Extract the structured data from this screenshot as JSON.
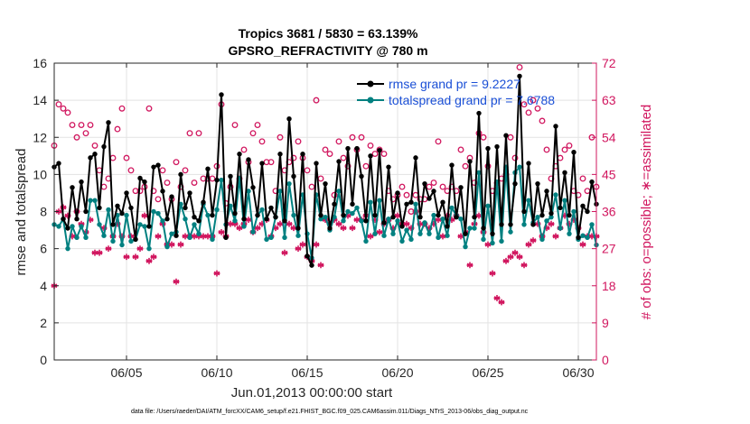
{
  "chart_data": {
    "type": "line",
    "title": "Tropics 3681 / 5830 = 63.139%",
    "subtitle": "GPSRO_REFRACTIVITY @ 780 m",
    "xlabel": "Jun.01,2013 00:00:00 start",
    "ylabel": "rmse and totalspread",
    "ylabel_right": "# of obs: o=possible; ∗=assimilated",
    "footer": "data file: /Users/raeder/DAI/ATM_forcXX/CAM6_setup/f.e21.FHIST_BGC.f09_025.CAM6assim.011/Diags_NTrS_2013-06/obs_diag_output.nc",
    "xlim": [
      1.0,
      31.0
    ],
    "ylim": [
      0,
      16
    ],
    "ylim_right": [
      0,
      72
    ],
    "x_ticks": [
      5,
      10,
      15,
      20,
      25,
      30
    ],
    "x_tick_labels": [
      "06/05",
      "06/10",
      "06/15",
      "06/20",
      "06/25",
      "06/30"
    ],
    "y_ticks": [
      0,
      2,
      4,
      6,
      8,
      10,
      12,
      14,
      16
    ],
    "y_ticks_right": [
      0,
      9,
      18,
      27,
      36,
      45,
      54,
      63,
      72
    ],
    "grid": true,
    "legend_position": "top-right",
    "x": [
      1.0,
      1.25,
      1.5,
      1.75,
      2.0,
      2.25,
      2.5,
      2.75,
      3.0,
      3.25,
      3.5,
      3.75,
      4.0,
      4.25,
      4.5,
      4.75,
      5.0,
      5.25,
      5.5,
      5.75,
      6.0,
      6.25,
      6.5,
      6.75,
      7.0,
      7.25,
      7.5,
      7.75,
      8.0,
      8.25,
      8.5,
      8.75,
      9.0,
      9.25,
      9.5,
      9.75,
      10.0,
      10.25,
      10.5,
      10.75,
      11.0,
      11.25,
      11.5,
      11.75,
      12.0,
      12.25,
      12.5,
      12.75,
      13.0,
      13.25,
      13.5,
      13.75,
      14.0,
      14.25,
      14.5,
      14.75,
      15.0,
      15.25,
      15.5,
      15.75,
      16.0,
      16.25,
      16.5,
      16.75,
      17.0,
      17.25,
      17.5,
      17.75,
      18.0,
      18.25,
      18.5,
      18.75,
      19.0,
      19.25,
      19.5,
      19.75,
      20.0,
      20.25,
      20.5,
      20.75,
      21.0,
      21.25,
      21.5,
      21.75,
      22.0,
      22.25,
      22.5,
      22.75,
      23.0,
      23.25,
      23.5,
      23.75,
      24.0,
      24.25,
      24.5,
      24.75,
      25.0,
      25.25,
      25.5,
      25.75,
      26.0,
      26.25,
      26.5,
      26.75,
      27.0,
      27.25,
      27.5,
      27.75,
      28.0,
      28.25,
      28.5,
      28.75,
      29.0,
      29.25,
      29.5,
      29.75,
      30.0,
      30.25,
      30.5,
      30.75,
      31.0
    ],
    "series": [
      {
        "name": "rmse grand pr = 9.2227",
        "color": "#000000",
        "marker": "filled-circle",
        "values": [
          10.4,
          10.6,
          7.6,
          7.1,
          9.3,
          7.6,
          9.6,
          8.0,
          10.9,
          11.1,
          8.2,
          11.5,
          12.8,
          7.3,
          8.3,
          7.9,
          9.0,
          8.2,
          6.5,
          9.8,
          9.6,
          7.2,
          10.4,
          10.5,
          9.1,
          7.6,
          8.8,
          6.7,
          10.0,
          8.2,
          9.0,
          7.7,
          7.5,
          8.5,
          10.3,
          7.8,
          9.7,
          14.3,
          6.6,
          9.9,
          7.9,
          11.1,
          7.6,
          10.8,
          9.3,
          7.8,
          10.6,
          7.6,
          8.2,
          7.7,
          11.1,
          7.5,
          13.0,
          9.9,
          7.1,
          11.1,
          5.6,
          5.1,
          10.6,
          7.8,
          9.5,
          7.1,
          8.4,
          10.7,
          7.8,
          11.4,
          8.4,
          11.4,
          9.9,
          7.5,
          11.0,
          7.8,
          11.3,
          7.4,
          10.4,
          7.7,
          9.0,
          7.2,
          8.4,
          8.5,
          10.9,
          7.7,
          9.5,
          8.7,
          9.1,
          7.8,
          8.5,
          7.2,
          10.5,
          7.7,
          9.3,
          6.8,
          10.7,
          7.7,
          13.3,
          7.1,
          11.4,
          6.8,
          11.5,
          7.3,
          12.1,
          7.3,
          9.5,
          15.3,
          8.0,
          10.6,
          7.3,
          9.5,
          7.8,
          9.1,
          7.9,
          12.6,
          8.2,
          10.1,
          7.8,
          11.2,
          6.6,
          8.3,
          8.0,
          9.6,
          8.4
        ]
      },
      {
        "name": "totalspread grand pr = 7.6788",
        "color": "#008080",
        "marker": "filled-circle",
        "values": [
          7.3,
          7.2,
          7.6,
          6.0,
          7.2,
          6.6,
          7.2,
          6.6,
          8.6,
          8.6,
          7.3,
          6.7,
          8.1,
          6.4,
          7.8,
          6.2,
          7.8,
          6.4,
          6.5,
          7.3,
          7.2,
          6.0,
          8.0,
          7.9,
          7.5,
          6.1,
          6.8,
          6.9,
          8.4,
          7.6,
          6.6,
          7.3,
          6.8,
          8.4,
          7.8,
          6.5,
          8.1,
          9.7,
          7.3,
          8.3,
          7.5,
          9.8,
          7.2,
          9.1,
          6.9,
          7.8,
          8.1,
          6.5,
          6.6,
          7.7,
          9.1,
          6.6,
          9.5,
          7.8,
          6.7,
          8.9,
          6.8,
          5.5,
          8.9,
          7.6,
          7.7,
          7.0,
          7.7,
          9.1,
          7.5,
          8.0,
          7.9,
          8.2,
          7.5,
          6.4,
          8.5,
          6.8,
          8.6,
          6.7,
          7.6,
          6.8,
          7.5,
          6.4,
          7.0,
          6.5,
          8.4,
          6.8,
          7.4,
          6.8,
          7.8,
          6.6,
          7.6,
          6.7,
          8.2,
          7.8,
          7.6,
          6.1,
          7.1,
          7.1,
          10.1,
          6.5,
          8.3,
          6.3,
          9.6,
          6.4,
          10.4,
          6.9,
          10.1,
          10.4,
          7.3,
          8.6,
          7.4,
          7.7,
          6.5,
          7.5,
          7.7,
          8.9,
          7.1,
          8.6,
          6.8,
          8.0,
          6.5,
          6.7,
          6.6,
          7.3,
          6.2
        ]
      },
      {
        "name": "possible",
        "color": "#d1175f",
        "marker": "open-circle",
        "axis": "right",
        "values": [
          52,
          62,
          61,
          60,
          57,
          54,
          57,
          55,
          57,
          52,
          46,
          42,
          44,
          49,
          56,
          61,
          49,
          46,
          41,
          41,
          42,
          61,
          41,
          39,
          46,
          43,
          39,
          48,
          42,
          46,
          55,
          43,
          55,
          44,
          44,
          44,
          47,
          62,
          38,
          42,
          57,
          44,
          51,
          48,
          55,
          57,
          53,
          48,
          48,
          41,
          54,
          46,
          48,
          49,
          53,
          49,
          46,
          42,
          63,
          44,
          51,
          50,
          40,
          53,
          49,
          47,
          54,
          51,
          54,
          47,
          52,
          50,
          51,
          50,
          41,
          39,
          40,
          42,
          40,
          36,
          40,
          39,
          39,
          42,
          43,
          53,
          42,
          41,
          42,
          41,
          51,
          47,
          49,
          43,
          55,
          54,
          47,
          41,
          43,
          44,
          45,
          54,
          49,
          71,
          62,
          60,
          63,
          61,
          58,
          51,
          44,
          47,
          49,
          51,
          52,
          41,
          40,
          44,
          41,
          54,
          42
        ]
      },
      {
        "name": "assimilated",
        "color": "#d1175f",
        "marker": "asterisk",
        "axis": "right",
        "values": [
          18,
          36,
          37,
          35,
          30,
          36,
          33,
          31,
          34,
          26,
          26,
          32,
          27,
          30,
          33,
          30,
          25,
          30,
          25,
          27,
          35,
          24,
          25,
          30,
          33,
          28,
          28,
          19,
          28,
          30,
          30,
          30,
          30,
          30,
          30,
          30,
          21,
          31,
          30,
          33,
          33,
          32,
          33,
          34,
          31,
          32,
          33,
          34,
          30,
          32,
          33,
          26,
          33,
          32,
          27,
          28,
          25,
          24,
          28,
          23,
          34,
          33,
          34,
          33,
          32,
          35,
          32,
          34,
          34,
          35,
          30,
          34,
          31,
          33,
          34,
          32,
          35,
          33,
          33,
          32,
          36,
          33,
          33,
          32,
          33,
          34,
          30,
          35,
          34,
          35,
          30,
          31,
          23,
          33,
          35,
          31,
          28,
          21,
          15,
          14,
          24,
          25,
          26,
          25,
          23,
          28,
          29,
          33,
          30,
          32,
          33,
          30,
          32,
          35,
          33,
          34,
          32,
          28,
          30,
          30,
          30
        ]
      }
    ]
  }
}
